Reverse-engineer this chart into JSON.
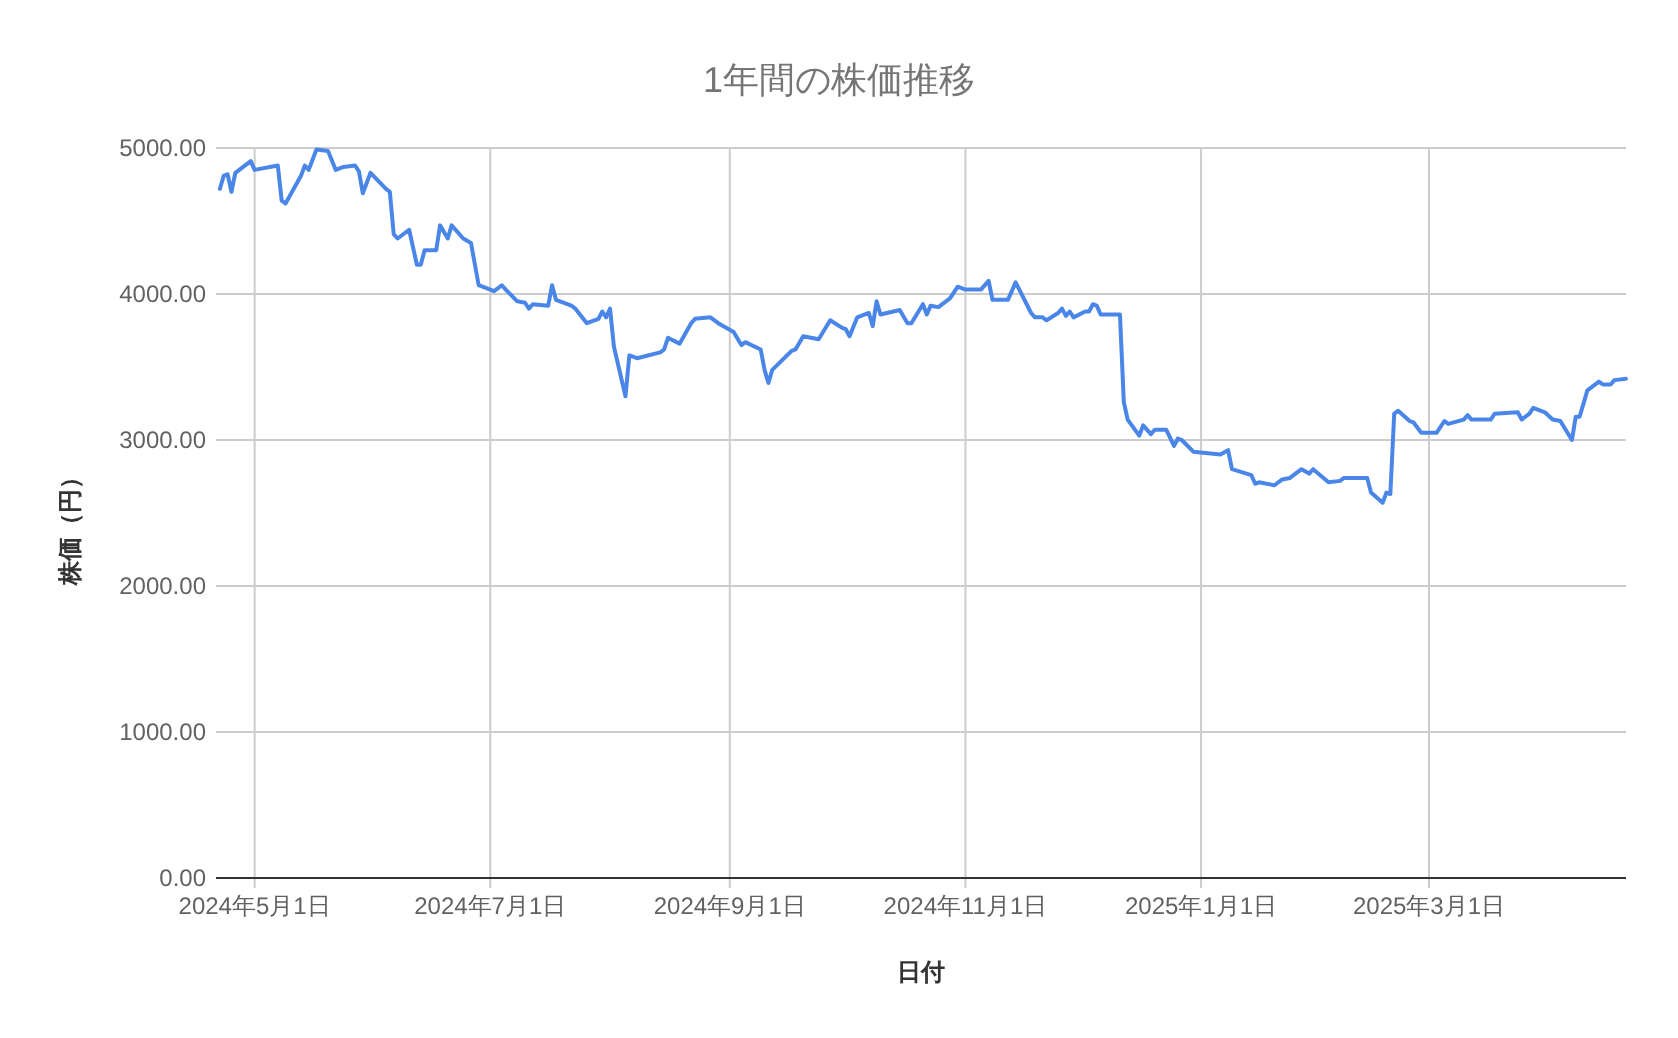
{
  "chart_data": {
    "type": "line",
    "title": "1年間の株価推移",
    "xlabel": "日付",
    "ylabel": "株価（円）",
    "x": [
      "2024-04-22",
      "2024-04-23",
      "2024-04-24",
      "2024-04-25",
      "2024-04-26",
      "2024-04-30",
      "2024-05-01",
      "2024-05-07",
      "2024-05-08",
      "2024-05-09",
      "2024-05-13",
      "2024-05-14",
      "2024-05-15",
      "2024-05-17",
      "2024-05-20",
      "2024-05-22",
      "2024-05-24",
      "2024-05-27",
      "2024-05-28",
      "2024-05-29",
      "2024-05-31",
      "2024-06-04",
      "2024-06-05",
      "2024-06-06",
      "2024-06-07",
      "2024-06-10",
      "2024-06-12",
      "2024-06-13",
      "2024-06-14",
      "2024-06-17",
      "2024-06-18",
      "2024-06-20",
      "2024-06-21",
      "2024-06-24",
      "2024-06-26",
      "2024-06-28",
      "2024-07-01",
      "2024-07-02",
      "2024-07-04",
      "2024-07-05",
      "2024-07-08",
      "2024-07-10",
      "2024-07-11",
      "2024-07-12",
      "2024-07-16",
      "2024-07-17",
      "2024-07-18",
      "2024-07-22",
      "2024-07-23",
      "2024-07-26",
      "2024-07-29",
      "2024-07-30",
      "2024-07-31",
      "2024-08-01",
      "2024-08-02",
      "2024-08-05",
      "2024-08-06",
      "2024-08-08",
      "2024-08-14",
      "2024-08-15",
      "2024-08-16",
      "2024-08-19",
      "2024-08-22",
      "2024-08-23",
      "2024-08-27",
      "2024-08-29",
      "2024-09-02",
      "2024-09-04",
      "2024-09-05",
      "2024-09-09",
      "2024-09-10",
      "2024-09-11",
      "2024-09-12",
      "2024-09-17",
      "2024-09-18",
      "2024-09-20",
      "2024-09-24",
      "2024-09-27",
      "2024-09-30",
      "2024-10-01",
      "2024-10-02",
      "2024-10-04",
      "2024-10-07",
      "2024-10-08",
      "2024-10-09",
      "2024-10-10",
      "2024-10-15",
      "2024-10-17",
      "2024-10-18",
      "2024-10-21",
      "2024-10-22",
      "2024-10-23",
      "2024-10-25",
      "2024-10-28",
      "2024-10-30",
      "2024-11-01",
      "2024-11-05",
      "2024-11-07",
      "2024-11-08",
      "2024-11-12",
      "2024-11-14",
      "2024-11-18",
      "2024-11-19",
      "2024-11-21",
      "2024-11-22",
      "2024-11-25",
      "2024-11-26",
      "2024-11-27",
      "2024-11-28",
      "2024-11-29",
      "2024-12-02",
      "2024-12-03",
      "2024-12-04",
      "2024-12-05",
      "2024-12-06",
      "2024-12-11",
      "2024-12-12",
      "2024-12-13",
      "2024-12-16",
      "2024-12-17",
      "2024-12-19",
      "2024-12-20",
      "2024-12-23",
      "2024-12-25",
      "2024-12-26",
      "2024-12-27",
      "2024-12-30",
      "2025-01-06",
      "2025-01-08",
      "2025-01-09",
      "2025-01-14",
      "2025-01-15",
      "2025-01-16",
      "2025-01-20",
      "2025-01-22",
      "2025-01-24",
      "2025-01-27",
      "2025-01-29",
      "2025-01-30",
      "2025-02-03",
      "2025-02-06",
      "2025-02-07",
      "2025-02-13",
      "2025-02-14",
      "2025-02-17",
      "2025-02-18",
      "2025-02-19",
      "2025-02-20",
      "2025-02-21",
      "2025-02-24",
      "2025-02-25",
      "2025-02-27",
      "2025-03-03",
      "2025-03-05",
      "2025-03-06",
      "2025-03-10",
      "2025-03-11",
      "2025-03-12",
      "2025-03-17",
      "2025-03-18",
      "2025-03-24",
      "2025-03-25",
      "2025-03-27",
      "2025-03-28",
      "2025-03-31",
      "2025-04-02",
      "2025-04-04",
      "2025-04-07",
      "2025-04-08",
      "2025-04-09",
      "2025-04-11",
      "2025-04-14",
      "2025-04-15",
      "2025-04-17",
      "2025-04-18",
      "2025-04-21"
    ],
    "series": [
      {
        "color": "#4a86e8",
        "values": [
          4720,
          4810,
          4820,
          4700,
          4830,
          4910,
          4850,
          4880,
          4640,
          4620,
          4810,
          4880,
          4850,
          4990,
          4980,
          4850,
          4870,
          4880,
          4840,
          4690,
          4830,
          4720,
          4700,
          4410,
          4380,
          4440,
          4200,
          4200,
          4300,
          4300,
          4470,
          4380,
          4470,
          4380,
          4350,
          4060,
          4030,
          4020,
          4060,
          4030,
          3950,
          3940,
          3900,
          3930,
          3920,
          4060,
          3960,
          3920,
          3900,
          3800,
          3830,
          3880,
          3840,
          3900,
          3640,
          3300,
          3580,
          3560,
          3600,
          3620,
          3700,
          3660,
          3800,
          3830,
          3840,
          3800,
          3740,
          3650,
          3670,
          3620,
          3480,
          3390,
          3480,
          3610,
          3620,
          3710,
          3690,
          3820,
          3770,
          3760,
          3710,
          3840,
          3870,
          3780,
          3950,
          3860,
          3890,
          3800,
          3800,
          3930,
          3860,
          3920,
          3910,
          3970,
          4050,
          4030,
          4030,
          4090,
          3960,
          3960,
          4080,
          3870,
          3840,
          3840,
          3820,
          3870,
          3900,
          3850,
          3880,
          3840,
          3880,
          3880,
          3930,
          3920,
          3860,
          3860,
          3260,
          3140,
          3030,
          3100,
          3040,
          3070,
          3070,
          2960,
          3010,
          3000,
          2920,
          2900,
          2930,
          2800,
          2760,
          2700,
          2710,
          2690,
          2730,
          2740,
          2800,
          2770,
          2800,
          2710,
          2720,
          2740,
          2740,
          2640,
          2570,
          2640,
          2630,
          3180,
          3200,
          3130,
          3120,
          3050,
          3050,
          3130,
          3110,
          3140,
          3170,
          3140,
          3140,
          3180,
          3190,
          3140,
          3180,
          3220,
          3190,
          3140,
          3130,
          3000,
          3160,
          3160,
          3340,
          3400,
          3380,
          3380,
          3410,
          3420
        ]
      }
    ],
    "xlim": [
      "2024-04-21",
      "2025-04-21"
    ],
    "xticks": [
      {
        "value": "2024-05-01",
        "label": "2024年5月1日"
      },
      {
        "value": "2024-07-01",
        "label": "2024年7月1日"
      },
      {
        "value": "2024-09-01",
        "label": "2024年9月1日"
      },
      {
        "value": "2024-11-01",
        "label": "2024年11月1日"
      },
      {
        "value": "2025-01-01",
        "label": "2025年1月1日"
      },
      {
        "value": "2025-03-01",
        "label": "2025年3月1日"
      }
    ],
    "ylim": [
      0,
      5000
    ],
    "yticks": [
      {
        "value": 0,
        "label": "0.00"
      },
      {
        "value": 1000,
        "label": "1000.00"
      },
      {
        "value": 2000,
        "label": "2000.00"
      },
      {
        "value": 3000,
        "label": "3000.00"
      },
      {
        "value": 4000,
        "label": "4000.00"
      },
      {
        "value": 5000,
        "label": "5000.00"
      }
    ],
    "grid": true
  }
}
